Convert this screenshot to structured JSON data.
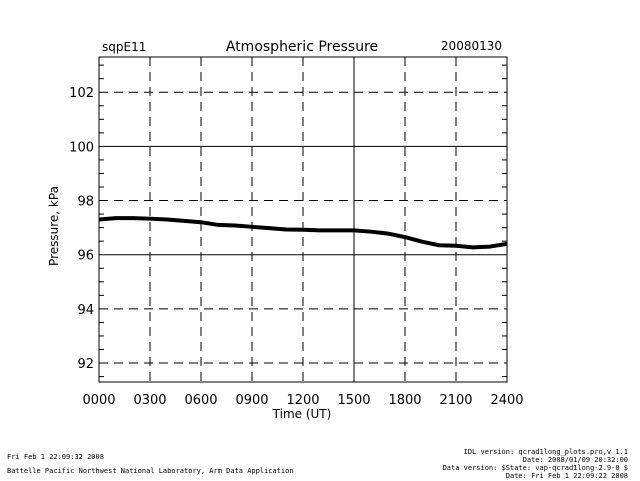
{
  "header": {
    "station": "sqpE11",
    "title": "Atmospheric Pressure",
    "date": "20080130"
  },
  "chart_data": {
    "type": "line",
    "title": "Atmospheric Pressure",
    "xlabel": "Time (UT)",
    "ylabel": "Pressure, kPa",
    "xlim": [
      0,
      2400
    ],
    "ylim": [
      91.3,
      103.3
    ],
    "x_ticks": [
      0,
      300,
      600,
      900,
      1200,
      1500,
      1800,
      2100,
      2400
    ],
    "x_tick_labels": [
      "0000",
      "0300",
      "0600",
      "0900",
      "1200",
      "1500",
      "1800",
      "2100",
      "2400"
    ],
    "y_ticks": [
      92,
      94,
      96,
      98,
      100,
      102
    ],
    "y_tick_labels": [
      "92",
      "94",
      "96",
      "98",
      "100",
      "102"
    ],
    "grid": true,
    "series": [
      {
        "color": "#000000",
        "x": [
          0,
          100,
          200,
          300,
          400,
          500,
          600,
          700,
          800,
          900,
          1000,
          1100,
          1200,
          1300,
          1400,
          1500,
          1600,
          1700,
          1800,
          1900,
          2000,
          2100,
          2200,
          2300,
          2400
        ],
        "y": [
          97.3,
          97.35,
          97.35,
          97.33,
          97.3,
          97.25,
          97.2,
          97.1,
          97.08,
          97.03,
          96.98,
          96.93,
          96.92,
          96.9,
          96.9,
          96.9,
          96.85,
          96.78,
          96.65,
          96.48,
          96.35,
          96.33,
          96.27,
          96.3,
          96.4
        ]
      }
    ]
  },
  "footer": {
    "timestamp": "Fri Feb  1 22:09:32 2008",
    "org": "Battelle Pacific Northwest National Laboratory, Arm Data Application",
    "idl_version": "IDL version: qcrad1long_plots.pro,v 1.1",
    "ver_date": "Date: 2008/01/09 20:32:00",
    "data_version": "Data version: $State: vap-qcrad1long-2.9-0 $",
    "data_date": "Date: Fri Feb  1 22:09:22 2008"
  }
}
